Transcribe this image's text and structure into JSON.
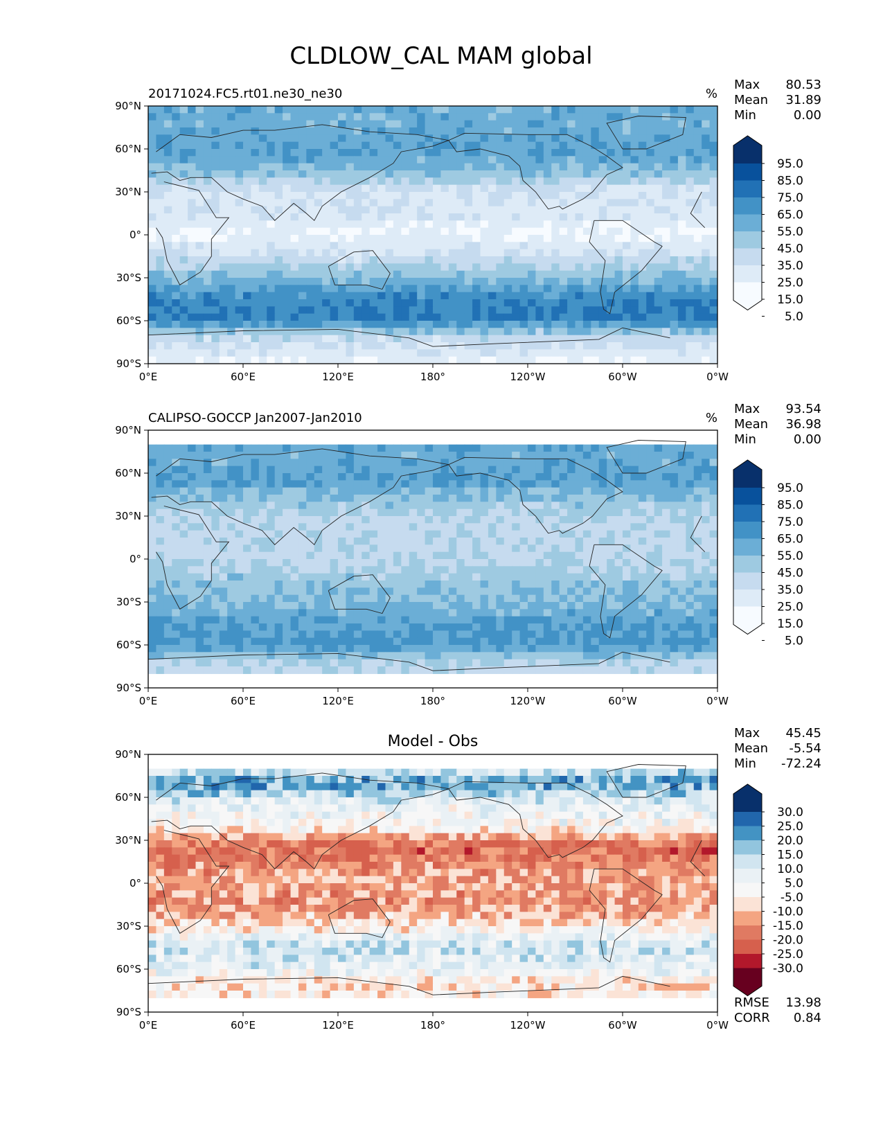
{
  "chart_data": {
    "type": "heatmap",
    "title": "CLDLOW_CAL MAM global",
    "x_ticks": [
      "0°E",
      "60°E",
      "120°E",
      "180°",
      "120°W",
      "60°W",
      "0°W"
    ],
    "y_ticks": [
      "90°N",
      "60°N",
      "30°N",
      "0°",
      "30°S",
      "60°S",
      "90°S"
    ],
    "xlim": [
      0,
      360
    ],
    "ylim": [
      -90,
      90
    ],
    "panels": [
      {
        "id": "model",
        "left_title": "20171024.FC5.rt01.ne30_ne30",
        "center_title": "",
        "units": "%",
        "stats": [
          {
            "label": "Max",
            "value": "80.53"
          },
          {
            "label": "Mean",
            "value": "31.89"
          },
          {
            "label": "Min",
            "value": "0.00"
          }
        ],
        "colorbar": {
          "labels": [
            "95.0",
            "85.0",
            "75.0",
            "65.0",
            "55.0",
            "45.0",
            "35.0",
            "25.0",
            "15.0",
            "5.0"
          ],
          "colors": [
            "#08306b",
            "#08519c",
            "#2171b5",
            "#4292c6",
            "#6baed6",
            "#9ecae1",
            "#c6dbef",
            "#deebf7",
            "#f7fbff"
          ]
        },
        "zonal_pattern": [
          {
            "lat": 90,
            "value": 50
          },
          {
            "lat": 75,
            "value": 50
          },
          {
            "lat": 60,
            "value": 55
          },
          {
            "lat": 45,
            "value": 45
          },
          {
            "lat": 30,
            "value": 20
          },
          {
            "lat": 15,
            "value": 20
          },
          {
            "lat": 0,
            "value": 10
          },
          {
            "lat": -15,
            "value": 25
          },
          {
            "lat": -30,
            "value": 45
          },
          {
            "lat": -45,
            "value": 65
          },
          {
            "lat": -60,
            "value": 68
          },
          {
            "lat": -70,
            "value": 30
          },
          {
            "lat": -90,
            "value": 10
          }
        ],
        "extra": []
      },
      {
        "id": "obs",
        "left_title": "CALIPSO-GOCCP Jan2007-Jan2010",
        "center_title": "",
        "units": "%",
        "stats": [
          {
            "label": "Max",
            "value": "93.54"
          },
          {
            "label": "Mean",
            "value": "36.98"
          },
          {
            "label": "Min",
            "value": "0.00"
          }
        ],
        "colorbar": {
          "labels": [
            "95.0",
            "85.0",
            "75.0",
            "65.0",
            "55.0",
            "45.0",
            "35.0",
            "25.0",
            "15.0",
            "5.0"
          ],
          "colors": [
            "#08306b",
            "#08519c",
            "#2171b5",
            "#4292c6",
            "#6baed6",
            "#9ecae1",
            "#c6dbef",
            "#deebf7",
            "#f7fbff"
          ]
        },
        "zonal_pattern": [
          {
            "lat": 82,
            "value": 55
          },
          {
            "lat": 70,
            "value": 50
          },
          {
            "lat": 55,
            "value": 55
          },
          {
            "lat": 40,
            "value": 40
          },
          {
            "lat": 25,
            "value": 30
          },
          {
            "lat": 10,
            "value": 30
          },
          {
            "lat": 0,
            "value": 30
          },
          {
            "lat": -15,
            "value": 40
          },
          {
            "lat": -30,
            "value": 45
          },
          {
            "lat": -45,
            "value": 55
          },
          {
            "lat": -60,
            "value": 60
          },
          {
            "lat": -70,
            "value": 35
          },
          {
            "lat": -82,
            "value": 25
          }
        ],
        "extra": []
      },
      {
        "id": "diff",
        "left_title": "",
        "center_title": "Model - Obs",
        "units": "",
        "stats": [
          {
            "label": "Max",
            "value": "45.45"
          },
          {
            "label": "Mean",
            "value": "-5.54"
          },
          {
            "label": "Min",
            "value": "-72.24"
          }
        ],
        "colorbar": {
          "labels": [
            "30.0",
            "25.0",
            "20.0",
            "15.0",
            "10.0",
            "5.0",
            "-5.0",
            "-10.0",
            "-15.0",
            "-20.0",
            "-25.0",
            "-30.0"
          ],
          "colors": [
            "#08306b",
            "#2166ac",
            "#4393c3",
            "#92c5de",
            "#d1e5f0",
            "#eaf1f5",
            "#f7f7f7",
            "#fbe3d6",
            "#f4a582",
            "#e07a62",
            "#d6604d",
            "#b2182b",
            "#67001f"
          ]
        },
        "zonal_pattern": [
          {
            "lat": 82,
            "value": 5
          },
          {
            "lat": 70,
            "value": 20
          },
          {
            "lat": 55,
            "value": 5
          },
          {
            "lat": 40,
            "value": 0
          },
          {
            "lat": 25,
            "value": -18
          },
          {
            "lat": 10,
            "value": -12
          },
          {
            "lat": 0,
            "value": -10
          },
          {
            "lat": -15,
            "value": -12
          },
          {
            "lat": -30,
            "value": -3
          },
          {
            "lat": -45,
            "value": 10
          },
          {
            "lat": -60,
            "value": 5
          },
          {
            "lat": -70,
            "value": -5
          },
          {
            "lat": -82,
            "value": 0
          }
        ],
        "extra": [
          {
            "label": "RMSE",
            "value": "13.98"
          },
          {
            "label": "CORR",
            "value": "0.84"
          }
        ]
      }
    ]
  }
}
